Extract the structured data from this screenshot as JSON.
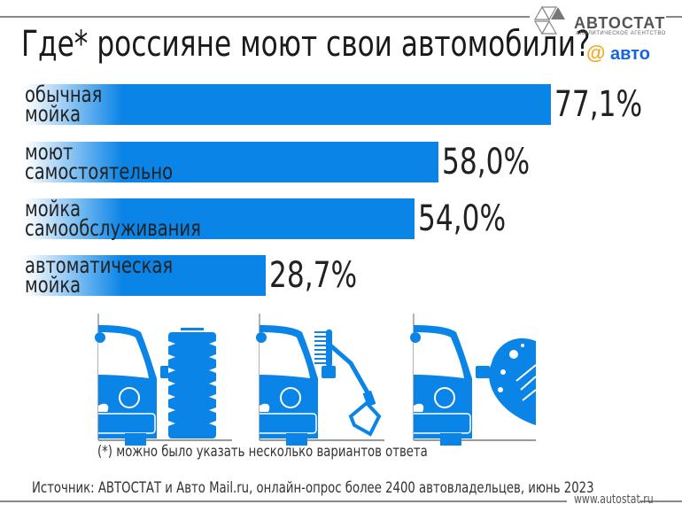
{
  "header": {
    "title": "Где* россияне моют свои автомобили?"
  },
  "logos": {
    "autostat": "АВТОСТАТ",
    "autostat_sub": "АНАЛИТИЧЕСКОЕ АГЕНТСТВО",
    "mail_at": "@",
    "mail_avto": "авто"
  },
  "colors": {
    "bar": "#0a84e6",
    "icon": "#0a84e6"
  },
  "chart_data": {
    "type": "bar",
    "orientation": "horizontal",
    "title": "Где* россияне моют свои автомобили?",
    "categories": [
      [
        "обычная",
        "мойка"
      ],
      [
        "моют",
        "самостоятельно"
      ],
      [
        "мойка",
        "самообслуживания"
      ],
      [
        "автоматическая",
        "мойка"
      ]
    ],
    "values": [
      77.1,
      58.0,
      54.0,
      28.7
    ],
    "value_labels": [
      "77,1%",
      "58,0%",
      "54,0%",
      "28,7%"
    ],
    "unit": "%"
  },
  "icons": [
    "car-brush-wash-icon",
    "car-pressure-washer-icon",
    "car-hand-wash-icon"
  ],
  "footer": {
    "note": "(*) можно было указать несколько вариантов ответа",
    "source": "Источник: АВТОСТАТ и Авто Mail.ru, онлайн-опрос более 2400 автовладельцев, июнь 2023",
    "site": "www.autostat.ru"
  }
}
